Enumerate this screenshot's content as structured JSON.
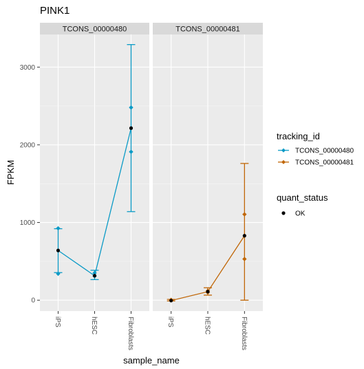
{
  "chart_data": {
    "type": "line",
    "title": "PINK1",
    "xlabel": "sample_name",
    "ylabel": "FPKM",
    "categories": [
      "iPS",
      "hESC",
      "Fibroblasts"
    ],
    "yticks": [
      0,
      1000,
      2000,
      3000
    ],
    "ylim": [
      -140,
      3420
    ],
    "grid": true,
    "legend_position": "right",
    "facets": [
      {
        "label": "TCONS_00000480",
        "series": {
          "name": "TCONS_00000480",
          "color": "#0a9ac6",
          "fpkm": [
            640,
            315,
            2215
          ],
          "conf_lo": [
            355,
            265,
            1140
          ],
          "conf_hi": [
            920,
            385,
            3290
          ],
          "diamond_lo": [
            340,
            310,
            1910
          ],
          "diamond_hi": [
            925,
            350,
            2480
          ]
        }
      },
      {
        "label": "TCONS_00000481",
        "series": {
          "name": "TCONS_00000481",
          "color": "#c06606",
          "fpkm": [
            -5,
            110,
            830
          ],
          "conf_lo": [
            -10,
            65,
            0
          ],
          "conf_hi": [
            10,
            160,
            1760
          ],
          "diamond_lo": [
            0,
            100,
            530
          ],
          "diamond_hi": [
            5,
            120,
            1105
          ]
        }
      }
    ],
    "legend": {
      "tracking_title": "tracking_id",
      "tracking_items": [
        {
          "label": "TCONS_00000480",
          "color": "#0a9ac6"
        },
        {
          "label": "TCONS_00000481",
          "color": "#c06606"
        }
      ],
      "status_title": "quant_status",
      "status_items": [
        {
          "label": "OK"
        }
      ]
    }
  }
}
